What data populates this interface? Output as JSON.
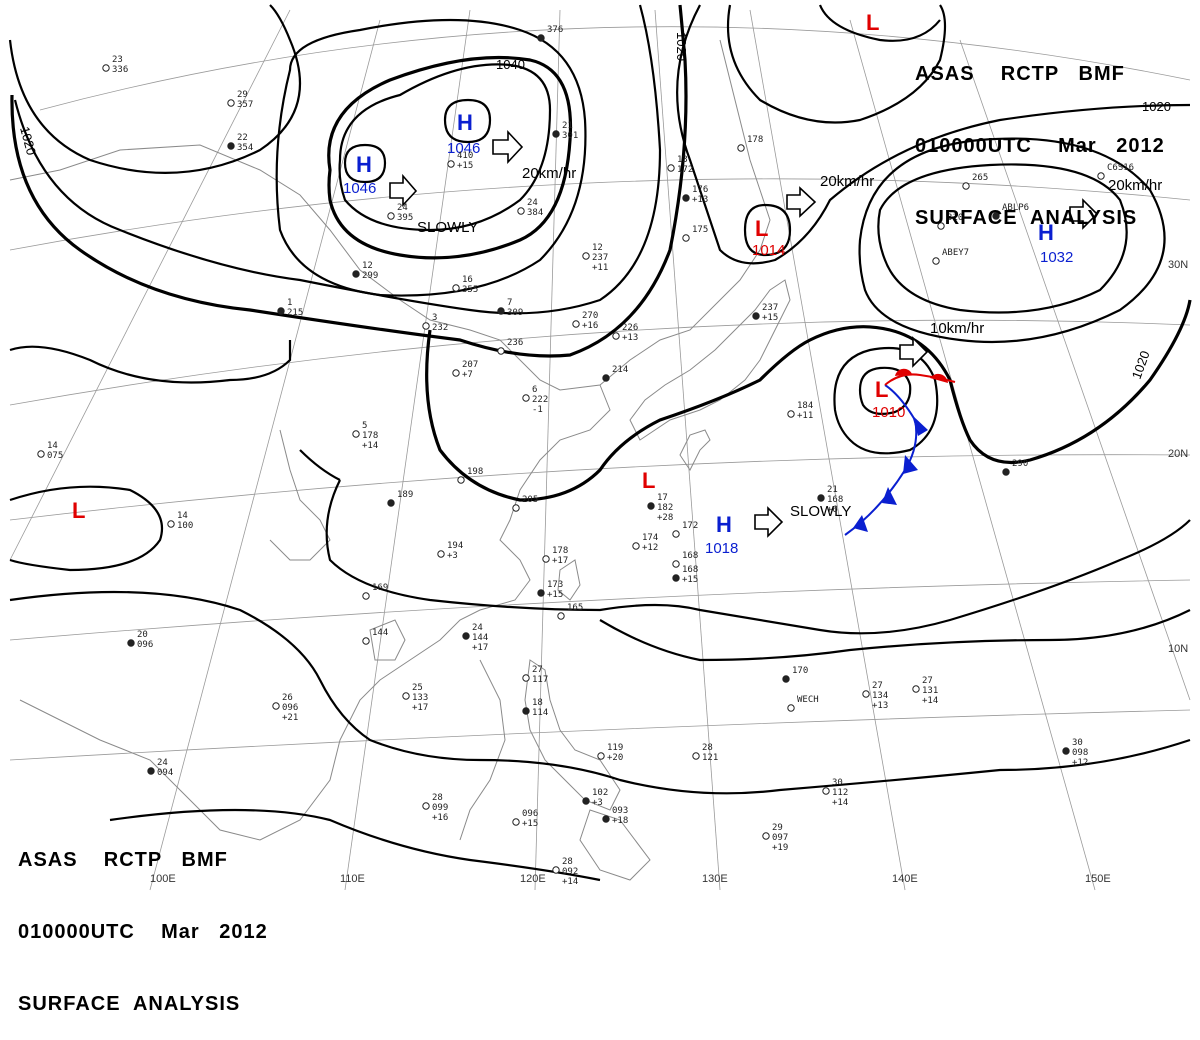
{
  "header": {
    "line1": "ASAS    RCTP   BMF",
    "line2": "010000UTC    Mar   2012",
    "line3": "SURFACE  ANALYSIS"
  },
  "footer": {
    "line1": "ASAS    RCTP   BMF",
    "line2": "010000UTC    Mar   2012",
    "line3": "SURFACE  ANALYSIS"
  },
  "longitude_labels": [
    "100E",
    "110E",
    "120E",
    "130E",
    "140E",
    "150E"
  ],
  "latitude_labels": [
    "30N",
    "20N",
    "10N"
  ],
  "isobar_labels": [
    "1040",
    "1020",
    "1020",
    "1020",
    "1020"
  ],
  "pressure_systems": [
    {
      "type": "H",
      "value": "1046",
      "motion": "20km/hr"
    },
    {
      "type": "H",
      "value": "1046",
      "motion": "SLOWLY"
    },
    {
      "type": "L",
      "value": "1014",
      "motion": "20km/hr"
    },
    {
      "type": "H",
      "value": "1032",
      "motion": "20km/hr"
    },
    {
      "type": "L",
      "value": "1010",
      "motion": "10km/hr"
    },
    {
      "type": "H",
      "value": "1018",
      "motion": "SLOWLY"
    },
    {
      "type": "L",
      "value": ""
    },
    {
      "type": "L",
      "value": ""
    },
    {
      "type": "L",
      "value": ""
    }
  ],
  "station_obs": [
    "376",
    "23 336",
    "29 357",
    "22 354",
    "410 +15",
    "24 395",
    "21 301",
    "13 172",
    "178",
    "176 +13",
    "175",
    "24 384",
    "12 299",
    "16 355",
    "12 237 +11",
    "7 309",
    "270 +16",
    "3 232",
    "1 215",
    "236",
    "226 +13",
    "214",
    "207 +7",
    "6 222 -1",
    "237 +15",
    "184 +11",
    "5 178 +14",
    "189",
    "198",
    "205",
    "17 182 +28",
    "172",
    "168",
    "21 168 +6",
    "194 +3",
    "178 +17",
    "173 +15",
    "165",
    "174 +12",
    "168 +15",
    "169",
    "144",
    "24 144 +17",
    "25 133 +17",
    "26 096 +21",
    "20 096",
    "14 100",
    "14 075",
    "24 094",
    "28 099 +16",
    "27 117",
    "18 114",
    "119 +20",
    "28 121",
    "102 +3",
    "096 +15",
    "28 092 +14",
    "093 +18",
    "29 097 +19",
    "30 112 +14",
    "170",
    "27 134 +13",
    "27 131 +14",
    "30 098 +12",
    "265",
    "310",
    "290",
    "WECH",
    "ABEY7",
    "ABLP6",
    "C6S16"
  ]
}
